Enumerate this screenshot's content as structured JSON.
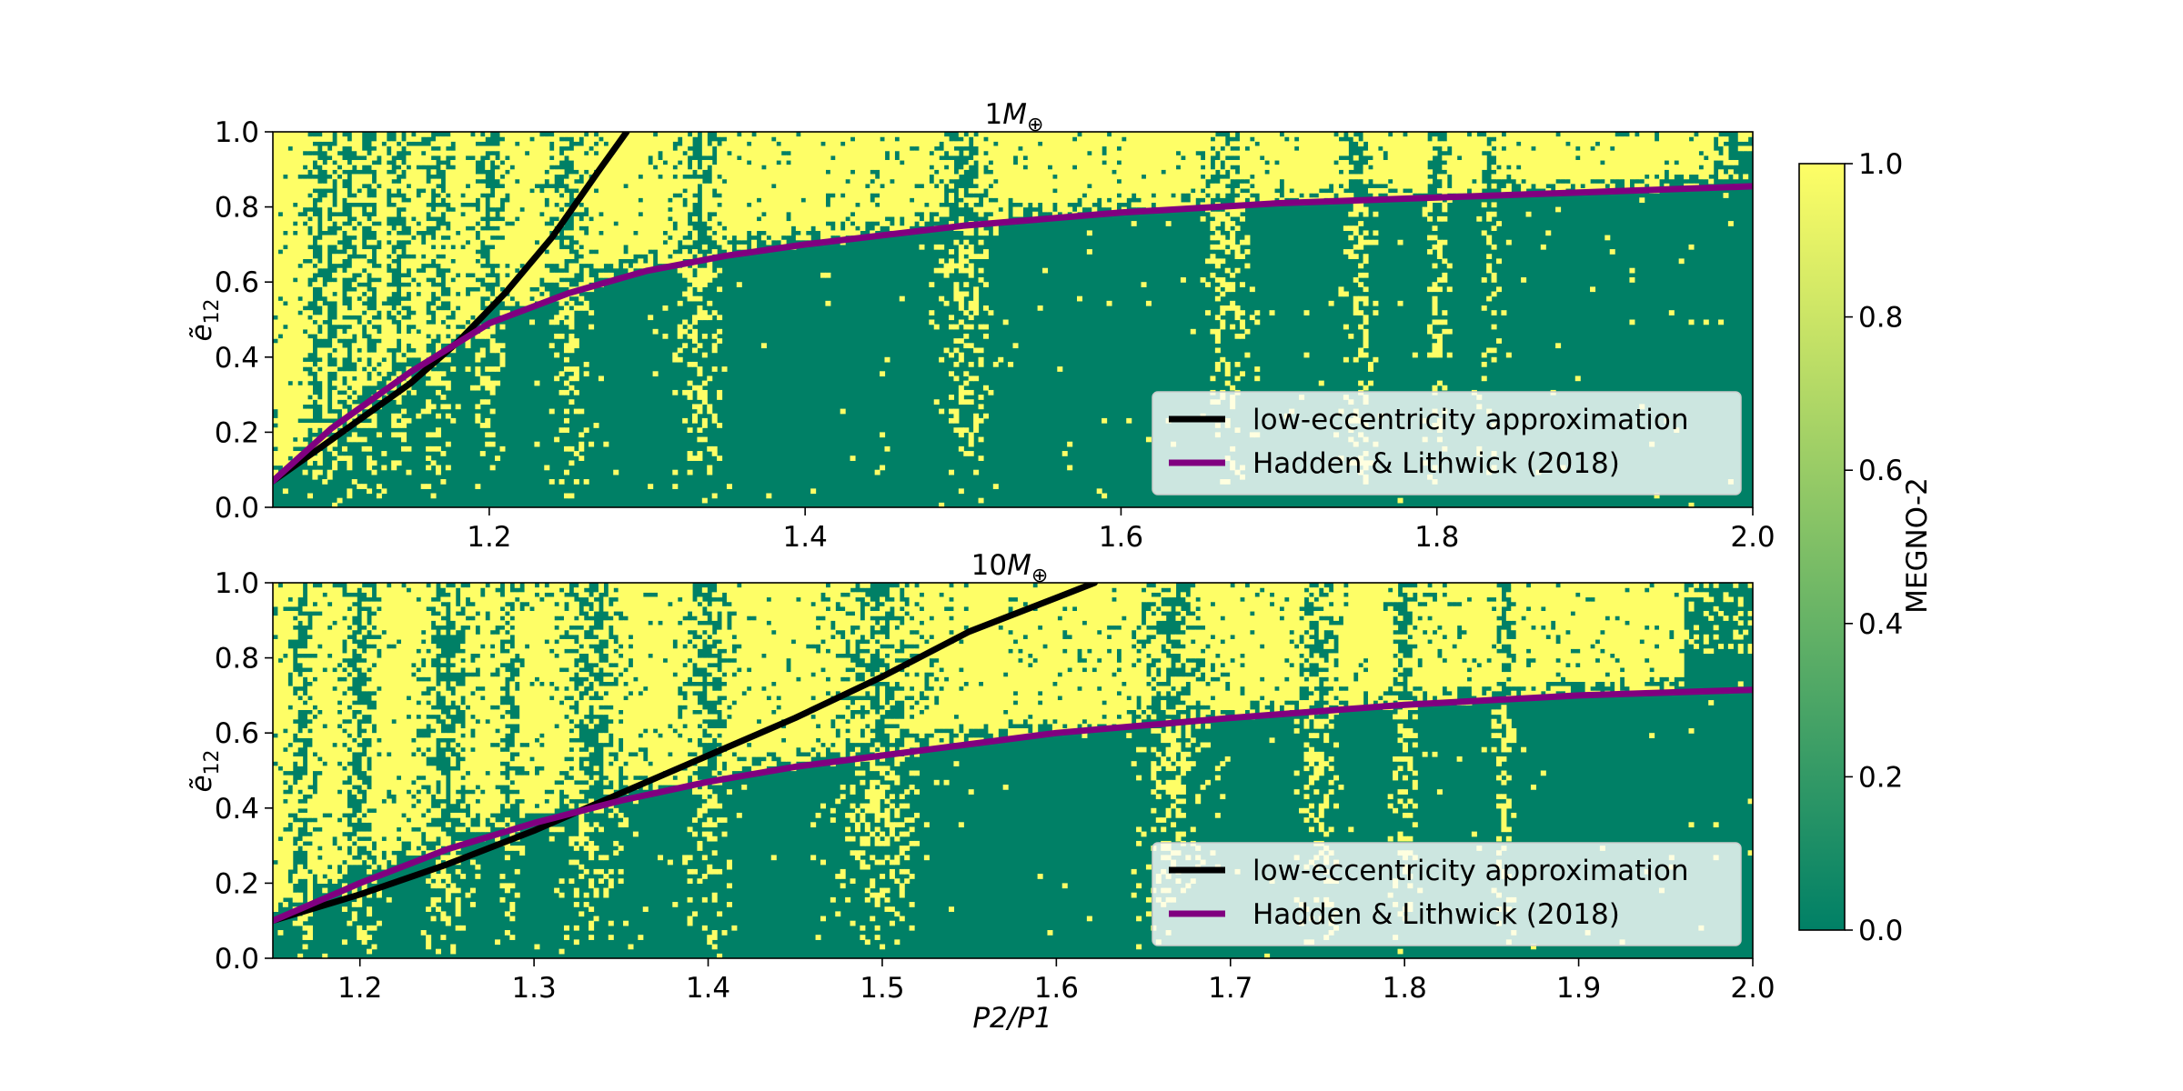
{
  "chart_data": [
    {
      "type": "heatmap",
      "title_num": "1",
      "title_sym": "M",
      "title_sub": "⊕",
      "xlim": [
        1.063,
        2.0
      ],
      "ylim": [
        0.0,
        1.0
      ],
      "xticks": [
        "1.2",
        "1.4",
        "1.6",
        "1.8",
        "2.0"
      ],
      "yticks": [
        "0.0",
        "0.2",
        "0.4",
        "0.6",
        "0.8",
        "1.0"
      ],
      "ylabel_main": "ẽ",
      "ylabel_sub": "12",
      "legend": {
        "position": "lower-right",
        "entries": [
          {
            "label": "low-eccentricity approximation",
            "color": "#000000"
          },
          {
            "label": "Hadden & Lithwick (2018)",
            "color": "#800080"
          }
        ]
      },
      "series": [
        {
          "name": "low-eccentricity approximation",
          "color": "#000000",
          "x": [
            1.063,
            1.09,
            1.12,
            1.15,
            1.18,
            1.21,
            1.24,
            1.27,
            1.287
          ],
          "y": [
            0.07,
            0.15,
            0.24,
            0.33,
            0.44,
            0.57,
            0.72,
            0.9,
            1.0
          ]
        },
        {
          "name": "Hadden & Lithwick (2018)",
          "color": "#800080",
          "x": [
            1.063,
            1.1,
            1.15,
            1.2,
            1.25,
            1.3,
            1.35,
            1.4,
            1.5,
            1.6,
            1.7,
            1.8,
            1.9,
            2.0
          ],
          "y": [
            0.07,
            0.21,
            0.36,
            0.49,
            0.57,
            0.63,
            0.67,
            0.7,
            0.75,
            0.785,
            0.81,
            0.825,
            0.84,
            0.855
          ]
        }
      ],
      "stability_boundary": {
        "x": [
          1.063,
          1.1,
          1.15,
          1.2,
          1.25,
          1.3,
          1.35,
          1.4,
          1.5,
          1.6,
          1.7,
          1.8,
          1.9,
          2.0
        ],
        "y": [
          0.07,
          0.2,
          0.36,
          0.5,
          0.58,
          0.64,
          0.68,
          0.71,
          0.76,
          0.79,
          0.81,
          0.83,
          0.84,
          0.85
        ]
      },
      "resonance_bands": [
        {
          "center": 1.0909,
          "width": 0.007
        },
        {
          "center": 1.1,
          "width": 0.007
        },
        {
          "center": 1.1111,
          "width": 0.008
        },
        {
          "center": 1.125,
          "width": 0.008
        },
        {
          "center": 1.1429,
          "width": 0.009
        },
        {
          "center": 1.1667,
          "width": 0.01
        },
        {
          "center": 1.2,
          "width": 0.011
        },
        {
          "center": 1.25,
          "width": 0.013
        },
        {
          "center": 1.3333,
          "width": 0.014
        },
        {
          "center": 1.5,
          "width": 0.018
        },
        {
          "center": 1.6667,
          "width": 0.014
        },
        {
          "center": 1.75,
          "width": 0.01
        },
        {
          "center": 1.8,
          "width": 0.008
        },
        {
          "center": 1.8333,
          "width": 0.006
        }
      ],
      "right_band": {
        "start": 1.975,
        "ybottom": 0.88
      }
    },
    {
      "type": "heatmap",
      "title_num": "10",
      "title_sym": "M",
      "title_sub": "⊕",
      "xlim": [
        1.15,
        2.0
      ],
      "ylim": [
        0.0,
        1.0
      ],
      "xticks": [
        "1.2",
        "1.3",
        "1.4",
        "1.5",
        "1.6",
        "1.7",
        "1.8",
        "1.9",
        "2.0"
      ],
      "yticks": [
        "0.0",
        "0.2",
        "0.4",
        "0.6",
        "0.8",
        "1.0"
      ],
      "ylabel_main": "ẽ",
      "ylabel_sub": "12",
      "xlabel": "P2/P1",
      "legend": {
        "position": "lower-right",
        "entries": [
          {
            "label": "low-eccentricity approximation",
            "color": "#000000"
          },
          {
            "label": "Hadden & Lithwick (2018)",
            "color": "#800080"
          }
        ]
      },
      "series": [
        {
          "name": "low-eccentricity approximation",
          "color": "#000000",
          "x": [
            1.15,
            1.2,
            1.25,
            1.3,
            1.35,
            1.4,
            1.45,
            1.5,
            1.55,
            1.6,
            1.622
          ],
          "y": [
            0.1,
            0.17,
            0.25,
            0.34,
            0.44,
            0.54,
            0.64,
            0.75,
            0.87,
            0.96,
            1.0
          ]
        },
        {
          "name": "Hadden & Lithwick (2018)",
          "color": "#800080",
          "x": [
            1.15,
            1.2,
            1.25,
            1.3,
            1.35,
            1.4,
            1.45,
            1.5,
            1.6,
            1.7,
            1.8,
            1.9,
            2.0
          ],
          "y": [
            0.1,
            0.2,
            0.29,
            0.36,
            0.42,
            0.47,
            0.51,
            0.54,
            0.6,
            0.64,
            0.675,
            0.7,
            0.715
          ]
        }
      ],
      "stability_boundary": {
        "x": [
          1.15,
          1.2,
          1.25,
          1.3,
          1.35,
          1.4,
          1.45,
          1.5,
          1.6,
          1.7,
          1.8,
          1.9,
          2.0
        ],
        "y": [
          0.12,
          0.22,
          0.31,
          0.38,
          0.44,
          0.48,
          0.52,
          0.55,
          0.6,
          0.64,
          0.67,
          0.7,
          0.72
        ]
      },
      "resonance_bands": [
        {
          "center": 1.1667,
          "width": 0.008
        },
        {
          "center": 1.2,
          "width": 0.012
        },
        {
          "center": 1.25,
          "width": 0.016
        },
        {
          "center": 1.2857,
          "width": 0.008
        },
        {
          "center": 1.3333,
          "width": 0.018
        },
        {
          "center": 1.4,
          "width": 0.012
        },
        {
          "center": 1.5,
          "width": 0.025
        },
        {
          "center": 1.6667,
          "width": 0.018
        },
        {
          "center": 1.75,
          "width": 0.012
        },
        {
          "center": 1.8,
          "width": 0.008
        },
        {
          "center": 1.8571,
          "width": 0.006
        }
      ],
      "right_band": {
        "start": 1.96,
        "ybottom": 0.8
      }
    }
  ],
  "colorbar": {
    "label": "MEGNO-2",
    "range": [
      0.0,
      1.0
    ],
    "ticks": [
      "0.0",
      "0.2",
      "0.4",
      "0.6",
      "0.8",
      "1.0"
    ],
    "cmap": [
      "#008066",
      "#fefe66"
    ]
  },
  "colors": {
    "stable": "#008066",
    "chaotic": "#fefe66"
  }
}
